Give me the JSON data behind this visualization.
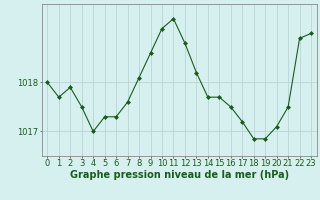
{
  "hours": [
    0,
    1,
    2,
    3,
    4,
    5,
    6,
    7,
    8,
    9,
    10,
    11,
    12,
    13,
    14,
    15,
    16,
    17,
    18,
    19,
    20,
    21,
    22,
    23
  ],
  "pressure": [
    1018.0,
    1017.7,
    1017.9,
    1017.5,
    1017.0,
    1017.3,
    1017.3,
    1017.6,
    1018.1,
    1018.6,
    1019.1,
    1019.3,
    1018.8,
    1018.2,
    1017.7,
    1017.7,
    1017.5,
    1017.2,
    1016.85,
    1016.85,
    1017.1,
    1017.5,
    1018.9,
    1019.0
  ],
  "line_color": "#1a5c1a",
  "marker": "D",
  "marker_size": 2,
  "bg_color": "#d6f0f0",
  "grid_color": "#b8d4d4",
  "xlabel": "Graphe pression niveau de la mer (hPa)",
  "xlabel_fontsize": 7,
  "xlabel_color": "#1a5c1a",
  "ytick_labels": [
    "1017",
    "1018"
  ],
  "ytick_values": [
    1017.0,
    1018.0
  ],
  "ylim": [
    1016.5,
    1019.6
  ],
  "xlim": [
    -0.5,
    23.5
  ],
  "tick_fontsize": 6,
  "tick_color": "#1a5c1a",
  "spine_color": "#888888",
  "figure_bg": "#d6f0f0"
}
